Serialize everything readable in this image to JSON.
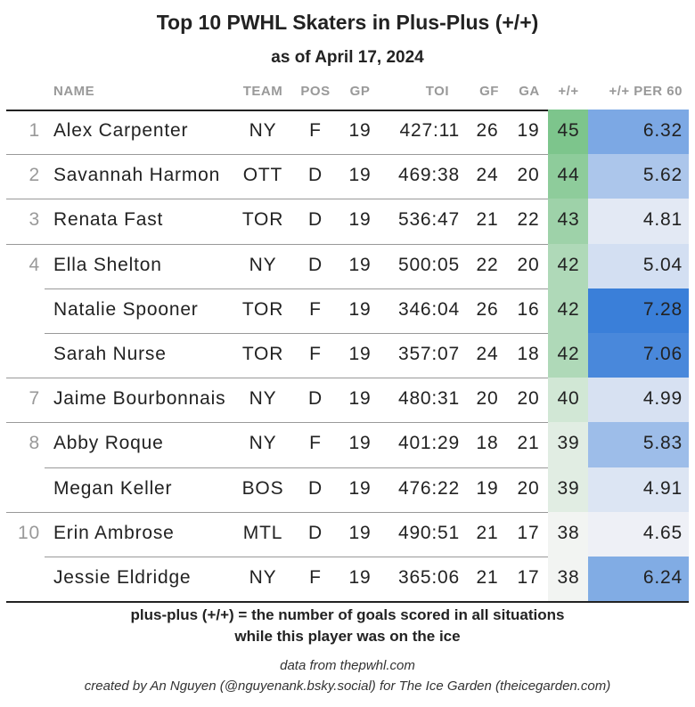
{
  "header": {
    "title": "Top 10 PWHL Skaters in Plus-Plus (+/+)",
    "subtitle": "as of April 17, 2024"
  },
  "table": {
    "columns": [
      "NAME",
      "TEAM",
      "POS",
      "GP",
      "TOI",
      "GF",
      "GA",
      "+/+",
      "+/+ PER 60"
    ],
    "rows": [
      [
        1,
        "Alex Carpenter",
        "NY",
        "F",
        19,
        "427:11",
        26,
        19,
        45,
        6.32
      ],
      [
        2,
        "Savannah Harmon",
        "OTT",
        "D",
        19,
        "469:38",
        24,
        20,
        44,
        5.62
      ],
      [
        3,
        "Renata Fast",
        "TOR",
        "D",
        19,
        "536:47",
        21,
        22,
        43,
        4.81
      ],
      [
        4,
        "Ella Shelton",
        "NY",
        "D",
        19,
        "500:05",
        22,
        20,
        42,
        5.04
      ],
      [
        null,
        "Natalie Spooner",
        "TOR",
        "F",
        19,
        "346:04",
        26,
        16,
        42,
        7.28
      ],
      [
        null,
        "Sarah Nurse",
        "TOR",
        "F",
        19,
        "357:07",
        24,
        18,
        42,
        7.06
      ],
      [
        7,
        "Jaime Bourbonnais",
        "NY",
        "D",
        19,
        "480:31",
        20,
        20,
        40,
        4.99
      ],
      [
        8,
        "Abby Roque",
        "NY",
        "F",
        19,
        "401:29",
        18,
        21,
        39,
        5.83
      ],
      [
        null,
        "Megan Keller",
        "BOS",
        "D",
        19,
        "476:22",
        19,
        20,
        39,
        4.91
      ],
      [
        10,
        "Erin Ambrose",
        "MTL",
        "D",
        19,
        "490:51",
        21,
        17,
        38,
        4.65
      ],
      [
        null,
        "Jessie Eldridge",
        "NY",
        "F",
        19,
        "365:06",
        21,
        17,
        38,
        6.24
      ]
    ]
  },
  "footer": {
    "notes": [
      "plus-plus (+/+) = the number of goals scored in all situations",
      "while this player was on the ice"
    ],
    "credits": [
      "data from thepwhl.com",
      "created by An Nguyen (@nguyenank.bsky.social) for The Ice Garden (theicegarden.com)"
    ]
  }
}
